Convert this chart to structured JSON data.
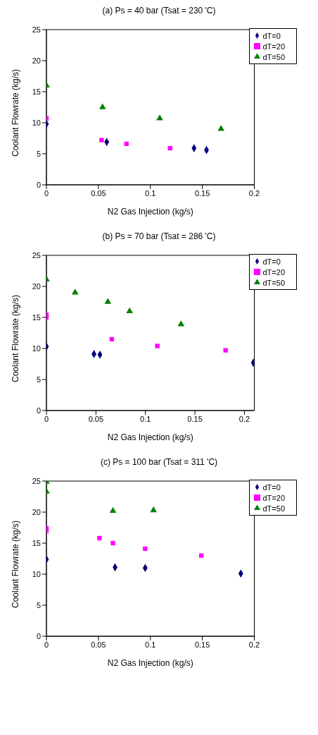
{
  "chart_data": [
    {
      "type": "scatter",
      "title": "(a) Ps = 40 bar (Tsat = 230 'C)",
      "xlabel": "N2 Gas Injection (kg/s)",
      "ylabel": "Coolant Flowrate (kg/s)",
      "xlim": [
        0,
        0.2
      ],
      "xticks": [
        0,
        0.05,
        0.1,
        0.15,
        0.2
      ],
      "ylim": [
        0,
        25
      ],
      "yticks": [
        0,
        5,
        10,
        15,
        20,
        25
      ],
      "grid": false,
      "legend": "top right",
      "series": [
        {
          "name": "dT=0",
          "color": "#000080",
          "marker": "diamond",
          "x": [
            0,
            0.058,
            0.142,
            0.154
          ],
          "values": [
            9.8,
            6.9,
            5.9,
            5.6
          ]
        },
        {
          "name": "dT=20",
          "color": "#ff00ff",
          "marker": "square",
          "x": [
            0,
            0.053,
            0.077,
            0.119
          ],
          "values": [
            10.7,
            7.2,
            6.6,
            5.9
          ]
        },
        {
          "name": "dT=50",
          "color": "#008000",
          "marker": "triangle",
          "x": [
            0,
            0.054,
            0.109,
            0.168
          ],
          "values": [
            16,
            12.5,
            10.7,
            9
          ]
        }
      ]
    },
    {
      "type": "scatter",
      "title": "(b) Ps = 70 bar (Tsat = 286 'C)",
      "xlabel": "N2 Gas Injection (kg/s)",
      "ylabel": "Coolant Flowrate (kg/s)",
      "xlim": [
        0,
        0.21
      ],
      "xticks": [
        0,
        0.05,
        0.1,
        0.15,
        0.2
      ],
      "ylim": [
        0,
        25
      ],
      "yticks": [
        0,
        5,
        10,
        15,
        20,
        25
      ],
      "grid": false,
      "legend": "top right",
      "series": [
        {
          "name": "dT=0",
          "color": "#000080",
          "marker": "diamond",
          "x": [
            0,
            0.048,
            0.054,
            0.209
          ],
          "values": [
            10.3,
            9.1,
            9.0,
            7.7
          ]
        },
        {
          "name": "dT=20",
          "color": "#ff00ff",
          "marker": "square",
          "x": [
            0,
            0,
            0.066,
            0.112,
            0.181
          ],
          "values": [
            15.4,
            15.0,
            11.5,
            10.4,
            9.7
          ]
        },
        {
          "name": "dT=50",
          "color": "#008000",
          "marker": "triangle",
          "x": [
            0,
            0.029,
            0.062,
            0.084,
            0.136
          ],
          "values": [
            21.1,
            19,
            17.5,
            16,
            13.9
          ]
        }
      ]
    },
    {
      "type": "scatter",
      "title": "(c) Ps = 100 bar (Tsat = 311 'C)",
      "xlabel": "N2 Gas Injection (kg/s)",
      "ylabel": "Coolant Flowrate (kg/s)",
      "xlim": [
        0,
        0.2
      ],
      "xticks": [
        0,
        0.05,
        0.1,
        0.15,
        0.2
      ],
      "ylim": [
        0,
        25
      ],
      "yticks": [
        0,
        5,
        10,
        15,
        20,
        25
      ],
      "grid": false,
      "legend": "top right",
      "series": [
        {
          "name": "dT=0",
          "color": "#000080",
          "marker": "diamond",
          "x": [
            0,
            0.066,
            0.095,
            0.187
          ],
          "values": [
            12.4,
            11.1,
            11,
            10.1
          ]
        },
        {
          "name": "dT=20",
          "color": "#ff00ff",
          "marker": "square",
          "x": [
            0,
            0,
            0.051,
            0.064,
            0.095,
            0.149
          ],
          "values": [
            17.4,
            17,
            15.8,
            15,
            14.1,
            13
          ]
        },
        {
          "name": "dT=50",
          "color": "#008000",
          "marker": "triangle",
          "x": [
            0,
            0,
            0.064,
            0.103
          ],
          "values": [
            24.9,
            23.3,
            20.2,
            20.3
          ]
        }
      ]
    }
  ]
}
